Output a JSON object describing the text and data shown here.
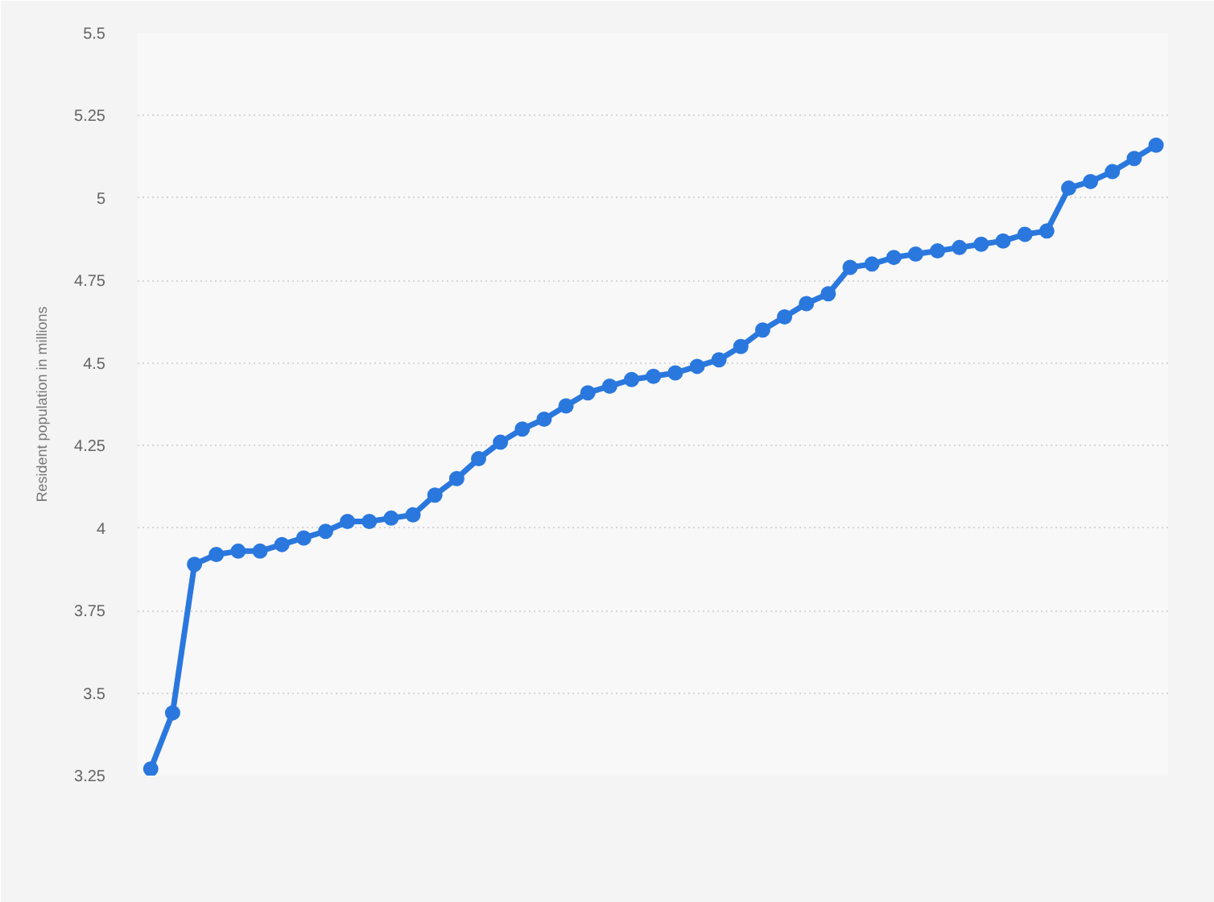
{
  "chart_data": {
    "type": "line",
    "ylabel": "Resident population in millions",
    "categories": [
      null,
      null,
      null,
      null,
      null,
      null,
      null,
      null,
      null,
      null,
      null,
      null,
      null,
      null,
      null,
      null,
      null,
      null,
      null,
      null,
      null,
      null,
      null,
      null,
      null,
      null,
      null,
      null,
      null,
      null,
      null,
      null,
      null,
      null,
      null,
      null,
      null,
      null,
      null,
      null,
      null,
      null,
      null,
      null,
      null,
      null,
      null
    ],
    "series": [
      {
        "color": "#2a78de",
        "values": [
          3.27,
          3.44,
          3.89,
          3.92,
          3.93,
          3.93,
          3.95,
          3.97,
          3.99,
          4.02,
          4.02,
          4.03,
          4.04,
          4.1,
          4.15,
          4.21,
          4.26,
          4.3,
          4.33,
          4.37,
          4.41,
          4.43,
          4.45,
          4.46,
          4.47,
          4.49,
          4.51,
          4.55,
          4.6,
          4.64,
          4.68,
          4.71,
          4.79,
          4.8,
          4.82,
          4.83,
          4.84,
          4.85,
          4.86,
          4.87,
          4.89,
          4.9,
          5.03,
          5.05,
          5.08,
          5.12,
          5.16
        ]
      }
    ],
    "ylim": [
      3.25,
      5.5
    ],
    "yticks": [
      3.25,
      3.5,
      3.75,
      4,
      4.25,
      4.5,
      4.75,
      5,
      5.25,
      5.5
    ],
    "grid": "y",
    "marker": "circle",
    "line_style": "solid",
    "tick_labels": "y"
  }
}
